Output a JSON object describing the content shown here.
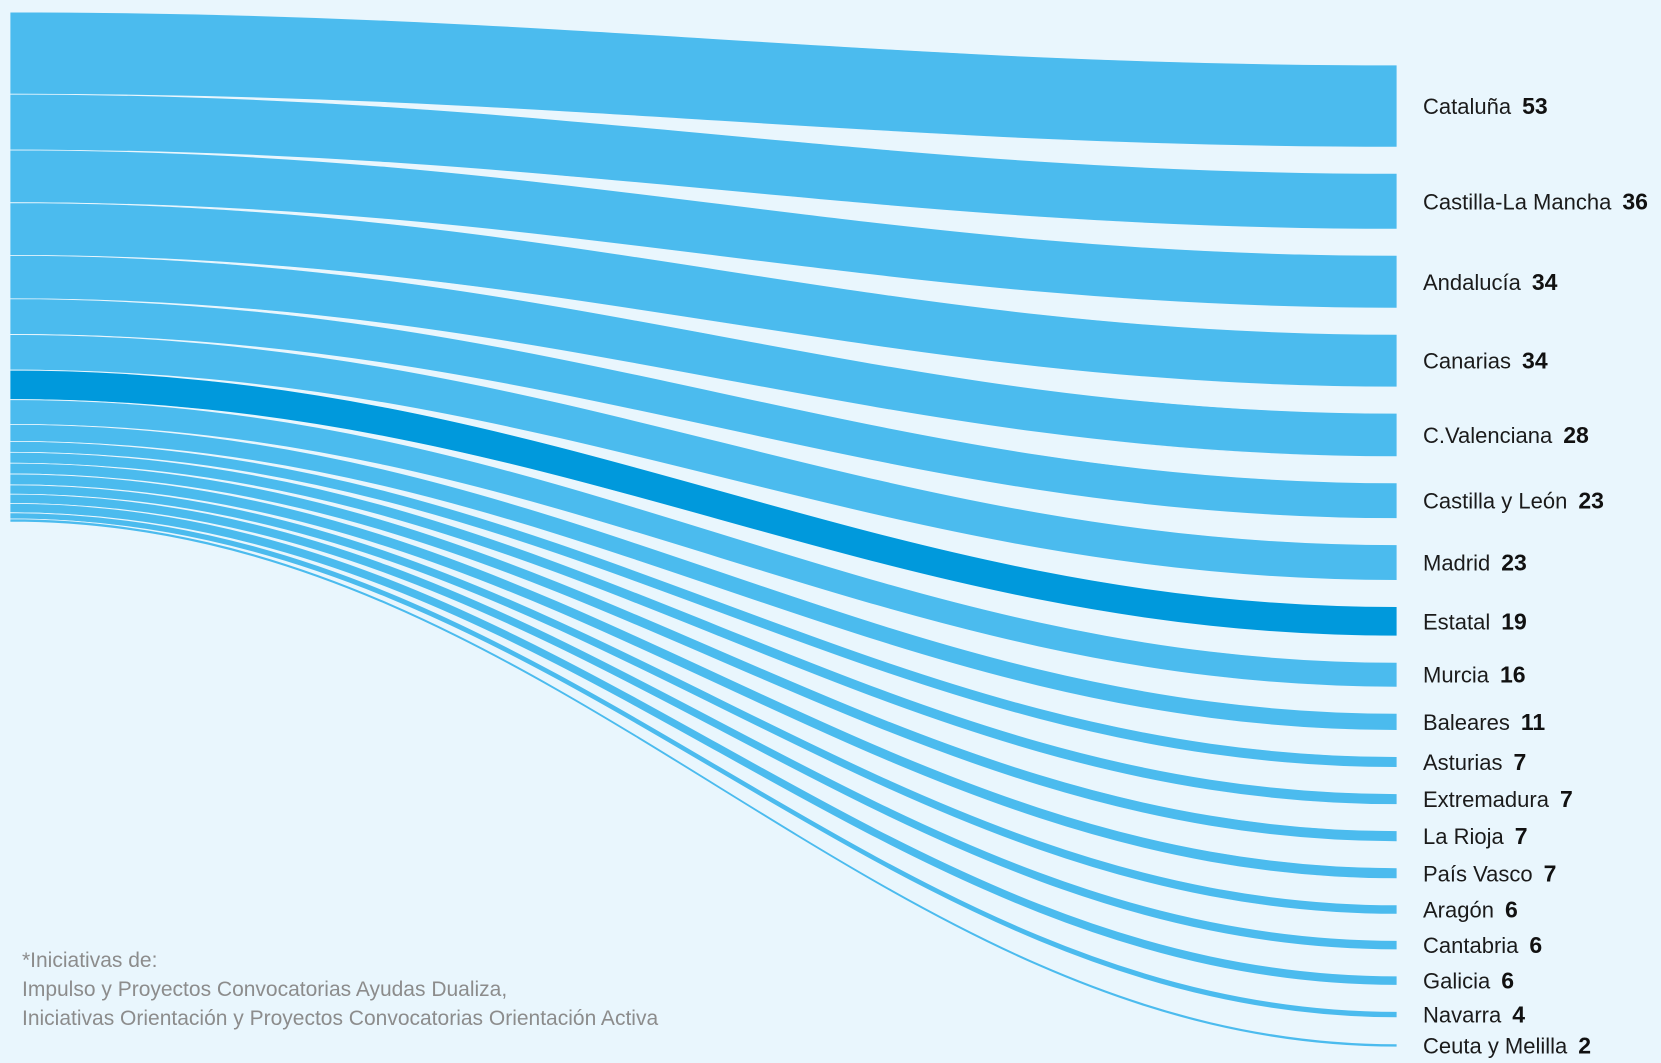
{
  "chart_data": {
    "type": "sankey",
    "title": "",
    "colors": {
      "default": "#4bbbee",
      "highlight": "#0099dc",
      "background": "#e9f6fd"
    },
    "highlight_category": "Estatal",
    "categories": [
      "Cataluña",
      "Castilla-La Mancha",
      "Andalucía",
      "Canarias",
      "C.Valenciana",
      "Castilla y León",
      "Madrid",
      "Estatal",
      "Murcia",
      "Baleares",
      "Asturias",
      "Extremadura",
      "La Rioja",
      "País Vasco",
      "Aragón",
      "Cantabria",
      "Galicia",
      "Navarra",
      "Ceuta y Melilla"
    ],
    "values": [
      53,
      36,
      34,
      34,
      28,
      23,
      23,
      19,
      16,
      11,
      7,
      7,
      7,
      7,
      6,
      6,
      6,
      4,
      2
    ]
  },
  "footnote": {
    "line1": "*Iniciativas de:",
    "line2": "Impulso y Proyectos Convocatorias Ayudas Dualiza,",
    "line3": "Iniciativas Orientación y Proyectos Convocatorias  Orientación Activa"
  }
}
